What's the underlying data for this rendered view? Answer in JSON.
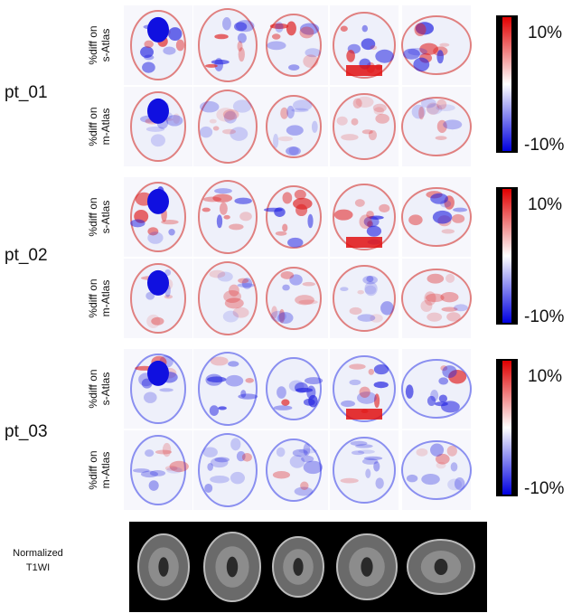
{
  "patients": [
    {
      "label": "pt_01",
      "rows": [
        {
          "line1": "%diff on",
          "line2": "s-Atlas"
        },
        {
          "line1": "%diff on",
          "line2": "m-Atlas"
        }
      ],
      "colorbar": {
        "max": "10%",
        "min": "-10%"
      }
    },
    {
      "label": "pt_02",
      "rows": [
        {
          "line1": "%diff on",
          "line2": "s-Atlas"
        },
        {
          "line1": "%diff on",
          "line2": "m-Atlas"
        }
      ],
      "colorbar": {
        "max": "10%",
        "min": "-10%"
      }
    },
    {
      "label": "pt_03",
      "rows": [
        {
          "line1": "%diff on",
          "line2": "s-Atlas"
        },
        {
          "line1": "%diff on",
          "line2": "m-Atlas"
        }
      ],
      "colorbar": {
        "max": "10%",
        "min": "-10%"
      }
    }
  ],
  "reference": {
    "line1": "Normalized",
    "line2": "T1WI"
  }
}
